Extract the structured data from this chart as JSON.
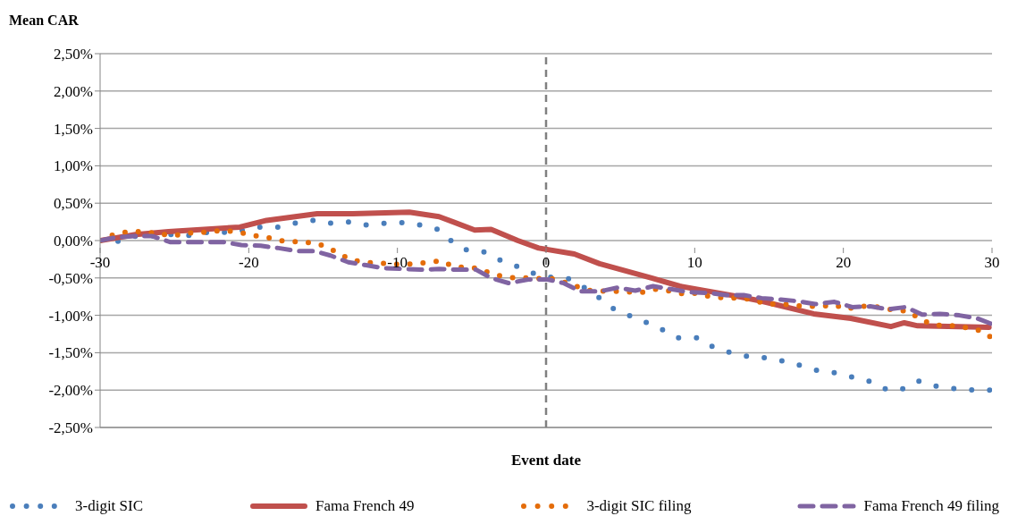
{
  "chart_data": {
    "type": "line",
    "ylabel": "Mean CAR",
    "xlabel": "Event date",
    "xlim": [
      -30,
      30
    ],
    "xticks": [
      -30,
      -20,
      -10,
      0,
      10,
      20,
      30
    ],
    "ylim": [
      -2.5,
      2.5
    ],
    "yticks": [
      {
        "value": -2.5,
        "label": "-2,50%"
      },
      {
        "value": -2,
        "label": "-2,00%"
      },
      {
        "value": -1.5,
        "label": "-1,50%"
      },
      {
        "value": -1,
        "label": "-1,00%"
      },
      {
        "value": -0.5,
        "label": "-0,50%"
      },
      {
        "value": 0,
        "label": "0,00%"
      },
      {
        "value": 0.5,
        "label": "0,50%"
      },
      {
        "value": 1,
        "label": "1,00%"
      },
      {
        "value": 1.5,
        "label": "1,50%"
      },
      {
        "value": 2,
        "label": "2,00%"
      },
      {
        "value": 2.5,
        "label": "2,50%"
      }
    ],
    "grid": "y",
    "legend": "bottom",
    "marker": "none",
    "ref_lines": [
      {
        "axis": "x",
        "value": 0,
        "color": "#808080",
        "line_style": "dashed"
      }
    ],
    "series": [
      {
        "name": "3-digit SIC",
        "color": "#4a7ebb",
        "line_style": "dotted",
        "x": [
          -30,
          -28.8,
          -27.6,
          -26.4,
          -25.2,
          -24,
          -22.8,
          -21.6,
          -20.4,
          -19.2,
          -18,
          -16.7,
          -15.6,
          -14.4,
          -13.2,
          -12.1,
          -10.9,
          -9.7,
          -8.5,
          -7.3,
          -6.4,
          -5.3,
          -4.2,
          -3.1,
          -1.9,
          -0.8,
          0.3,
          1.5,
          2.6,
          3.6,
          4.6,
          5.7,
          6.8,
          7.8,
          8.9,
          10.2,
          11.2,
          12.4,
          13.6,
          14.8,
          15.9,
          17.1,
          18.3,
          19.5,
          20.7,
          21.9,
          23,
          24.1,
          25.1,
          26.3,
          27.5,
          28.7,
          29.9
        ],
        "values": [
          0,
          -0.01,
          0.06,
          0.06,
          0.08,
          0.07,
          0.11,
          0.11,
          0.14,
          0.18,
          0.18,
          0.24,
          0.27,
          0.23,
          0.25,
          0.21,
          0.23,
          0.24,
          0.21,
          0.15,
          0,
          -0.13,
          -0.15,
          -0.26,
          -0.35,
          -0.44,
          -0.49,
          -0.51,
          -0.63,
          -0.77,
          -0.92,
          -1.01,
          -1.1,
          -1.19,
          -1.3,
          -1.3,
          -1.42,
          -1.5,
          -1.55,
          -1.57,
          -1.61,
          -1.67,
          -1.74,
          -1.77,
          -1.83,
          -1.89,
          -2,
          -1.98,
          -1.88,
          -1.95,
          -1.98,
          -2,
          -2
        ]
      },
      {
        "name": "Fama French 49",
        "color": "#c0504d",
        "line_style": "solid",
        "x": [
          -30,
          -27.6,
          -25.4,
          -20.6,
          -18.8,
          -15.4,
          -13,
          -9.2,
          -7.2,
          -4.8,
          -3.7,
          -1.9,
          -0.5,
          1.9,
          3.6,
          7.1,
          9,
          12.7,
          14.5,
          18,
          20.5,
          23.2,
          24.1,
          25,
          29.8
        ],
        "values": [
          0,
          0.08,
          0.12,
          0.18,
          0.27,
          0.36,
          0.36,
          0.38,
          0.32,
          0.14,
          0.15,
          0,
          -0.1,
          -0.18,
          -0.31,
          -0.5,
          -0.61,
          -0.74,
          -0.81,
          -0.98,
          -1.04,
          -1.15,
          -1.1,
          -1.14,
          -1.16
        ]
      },
      {
        "name": "3-digit SIC filing",
        "color": "#e46c0a",
        "line_style": "dotted",
        "x": [
          -30,
          -29.2,
          -28.4,
          -27.5,
          -26.7,
          -25.7,
          -24.9,
          -24,
          -23.1,
          -22.3,
          -21.4,
          -20.6,
          -19.8,
          -18.9,
          -18,
          -17.2,
          -16.3,
          -15.4,
          -14.6,
          -13.9,
          -13.1,
          -12.2,
          -11.4,
          -10.6,
          -9.7,
          -8.8,
          -7.9,
          -7.1,
          -6.2,
          -5.4,
          -4.6,
          -3.7,
          -2.9,
          -2.1,
          -1.2,
          -0.3,
          0.6,
          1.8,
          3,
          4.8,
          5.7,
          6.5,
          7.4,
          8.2,
          9.1,
          9.9,
          10.8,
          11.6,
          12.5,
          13.3,
          14.3,
          15,
          15.9,
          16.7,
          17.7,
          18.5,
          19.4,
          20.2,
          21,
          21.9,
          22.7,
          23.6,
          24.3,
          25.1,
          25.9,
          26.7,
          27.6,
          28.4,
          29.3,
          29.9
        ],
        "values": [
          0,
          0.07,
          0.11,
          0.12,
          0.11,
          0.08,
          0.07,
          0.1,
          0.11,
          0.13,
          0.13,
          0.11,
          0.07,
          0.05,
          0,
          -0.01,
          -0.02,
          -0.04,
          -0.1,
          -0.18,
          -0.26,
          -0.29,
          -0.3,
          -0.31,
          -0.32,
          -0.31,
          -0.29,
          -0.27,
          -0.35,
          -0.36,
          -0.37,
          -0.44,
          -0.48,
          -0.5,
          -0.5,
          -0.51,
          -0.51,
          -0.6,
          -0.67,
          -0.68,
          -0.69,
          -0.69,
          -0.65,
          -0.67,
          -0.71,
          -0.7,
          -0.74,
          -0.76,
          -0.77,
          -0.77,
          -0.82,
          -0.85,
          -0.85,
          -0.87,
          -0.88,
          -0.88,
          -0.86,
          -0.92,
          -0.88,
          -0.88,
          -0.9,
          -0.94,
          -0.94,
          -1.04,
          -1.12,
          -1.14,
          -1.14,
          -1.17,
          -1.21,
          -1.29
        ]
      },
      {
        "name": "Fama French 49 filing",
        "color": "#8064a2",
        "line_style": "dashed",
        "x": [
          -30,
          -29,
          -27.7,
          -26.5,
          -25.3,
          -24.1,
          -22.9,
          -21.7,
          -20.5,
          -19.2,
          -18,
          -16.8,
          -15.6,
          -14.5,
          -13.3,
          -12.1,
          -10.9,
          -9.6,
          -8.4,
          -7.2,
          -6,
          -4.7,
          -3.7,
          -2.5,
          -1.2,
          0.1,
          1.2,
          2.3,
          3.6,
          4.8,
          6,
          7.2,
          8.4,
          9.6,
          10.9,
          12.1,
          13.3,
          14.5,
          15.8,
          16.9,
          18.1,
          19.4,
          20.6,
          21.8,
          23,
          24.2,
          25.3,
          26.5,
          27.8,
          29,
          29.9
        ],
        "values": [
          0,
          0.04,
          0.06,
          0.06,
          -0.02,
          -0.02,
          -0.02,
          -0.02,
          -0.06,
          -0.07,
          -0.1,
          -0.14,
          -0.14,
          -0.2,
          -0.29,
          -0.33,
          -0.37,
          -0.38,
          -0.39,
          -0.38,
          -0.39,
          -0.39,
          -0.5,
          -0.57,
          -0.52,
          -0.52,
          -0.57,
          -0.68,
          -0.68,
          -0.63,
          -0.67,
          -0.61,
          -0.65,
          -0.69,
          -0.7,
          -0.73,
          -0.73,
          -0.77,
          -0.79,
          -0.81,
          -0.85,
          -0.82,
          -0.89,
          -0.88,
          -0.92,
          -0.89,
          -0.99,
          -0.98,
          -1,
          -1.04,
          -1.11
        ]
      }
    ]
  }
}
